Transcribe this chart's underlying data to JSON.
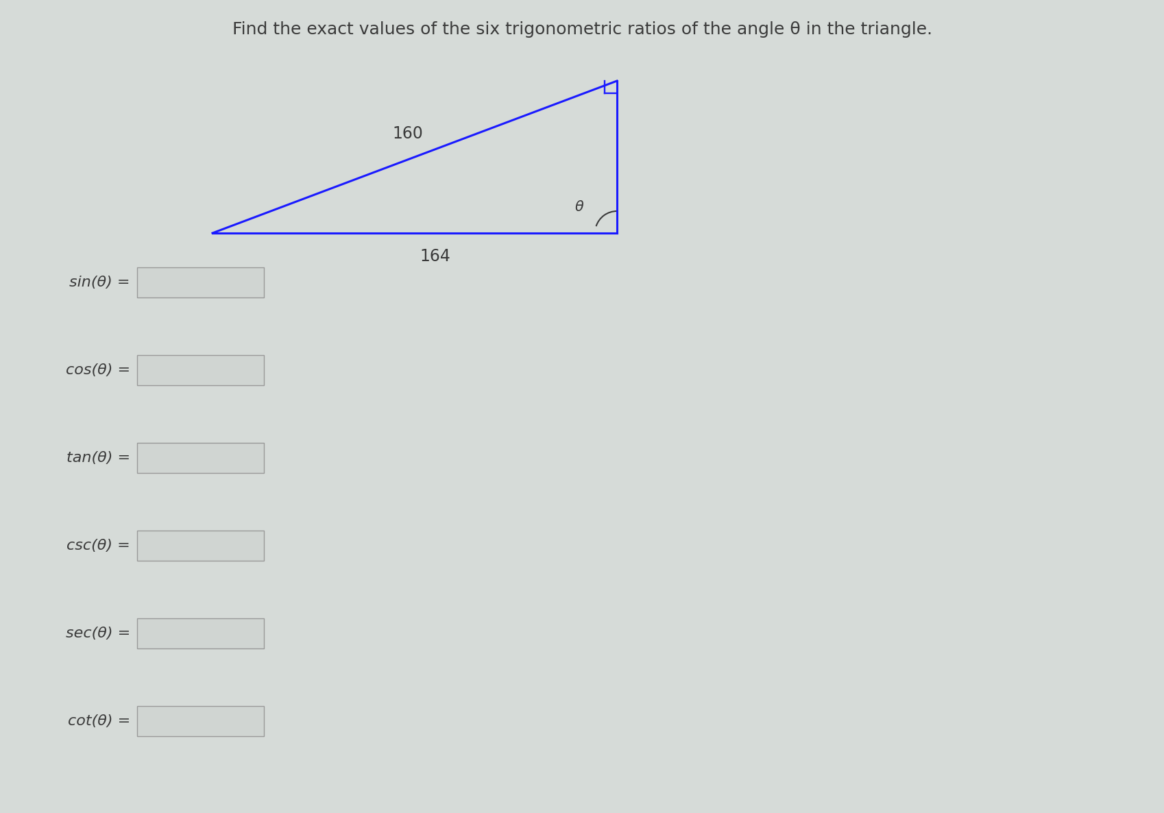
{
  "title": "Find the exact values of the six trigonometric ratios of the angle θ in the triangle.",
  "title_fontsize": 18,
  "background_color": "#d6dbd8",
  "triangle_color": "#1a1aff",
  "triangle_linewidth": 2.2,
  "hypotenuse_label": "160",
  "base_label": "164",
  "angle_label": "θ",
  "trig_labels": [
    "sin(θ) =",
    "cos(θ) =",
    "tan(θ) =",
    "csc(θ) =",
    "sec(θ) =",
    "cot(θ) ="
  ],
  "label_fontsize": 16,
  "box_facecolor": "#d0d5d2",
  "box_edgecolor": "#999999",
  "text_color": "#3a3a3a"
}
